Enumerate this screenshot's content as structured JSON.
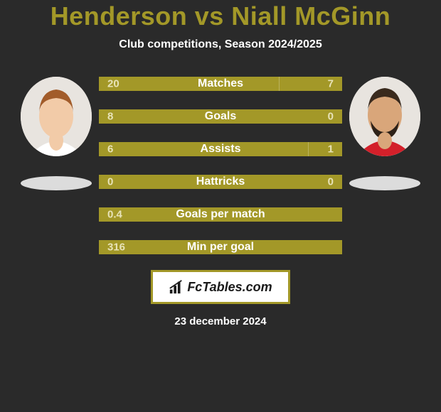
{
  "title": "Henderson vs Niall McGinn",
  "subtitle": "Club competitions, Season 2024/2025",
  "brand": "FcTables.com",
  "date": "23 december 2024",
  "colors": {
    "background": "#2a2a2a",
    "accent": "#a39828",
    "bar_text": "#e8e3b8",
    "white": "#ffffff",
    "shadow": "#dcdcdc",
    "avatar_bg": "#e8e4df"
  },
  "typography": {
    "title_fontsize": 36,
    "subtitle_fontsize": 16,
    "stat_label_fontsize": 16,
    "stat_value_fontsize": 15,
    "brand_fontsize": 18,
    "date_fontsize": 15
  },
  "layout": {
    "stat_bar_width": 342,
    "stat_bar_height": 20,
    "stat_gap": 26,
    "avatar_diameter": 100,
    "shadow_width": 100,
    "shadow_height": 20
  },
  "players": {
    "left": {
      "name": "Henderson",
      "avatar": {
        "skin": "#f2cba8",
        "hair": "#a25c2a",
        "shirt": "#ffffff"
      }
    },
    "right": {
      "name": "Niall McGinn",
      "avatar": {
        "skin": "#d9a67a",
        "hair": "#3a2a1d",
        "beard": "#2d2118",
        "shirt": "#d3202a"
      }
    }
  },
  "stats": [
    {
      "label": "Matches",
      "left_value": "20",
      "right_value": "7",
      "left_width_pct": 74,
      "right_width_pct": 26
    },
    {
      "label": "Goals",
      "left_value": "8",
      "right_value": "0",
      "left_width_pct": 100,
      "right_width_pct": 0
    },
    {
      "label": "Assists",
      "left_value": "6",
      "right_value": "1",
      "left_width_pct": 86,
      "right_width_pct": 14
    },
    {
      "label": "Hattricks",
      "left_value": "0",
      "right_value": "0",
      "left_width_pct": 100,
      "right_width_pct": 0,
      "zero_both": true
    },
    {
      "label": "Goals per match",
      "left_value": "0.4",
      "right_value": "",
      "left_width_pct": 100,
      "right_width_pct": 0,
      "single_side": true
    },
    {
      "label": "Min per goal",
      "left_value": "316",
      "right_value": "",
      "left_width_pct": 100,
      "right_width_pct": 0,
      "single_side": true
    }
  ]
}
